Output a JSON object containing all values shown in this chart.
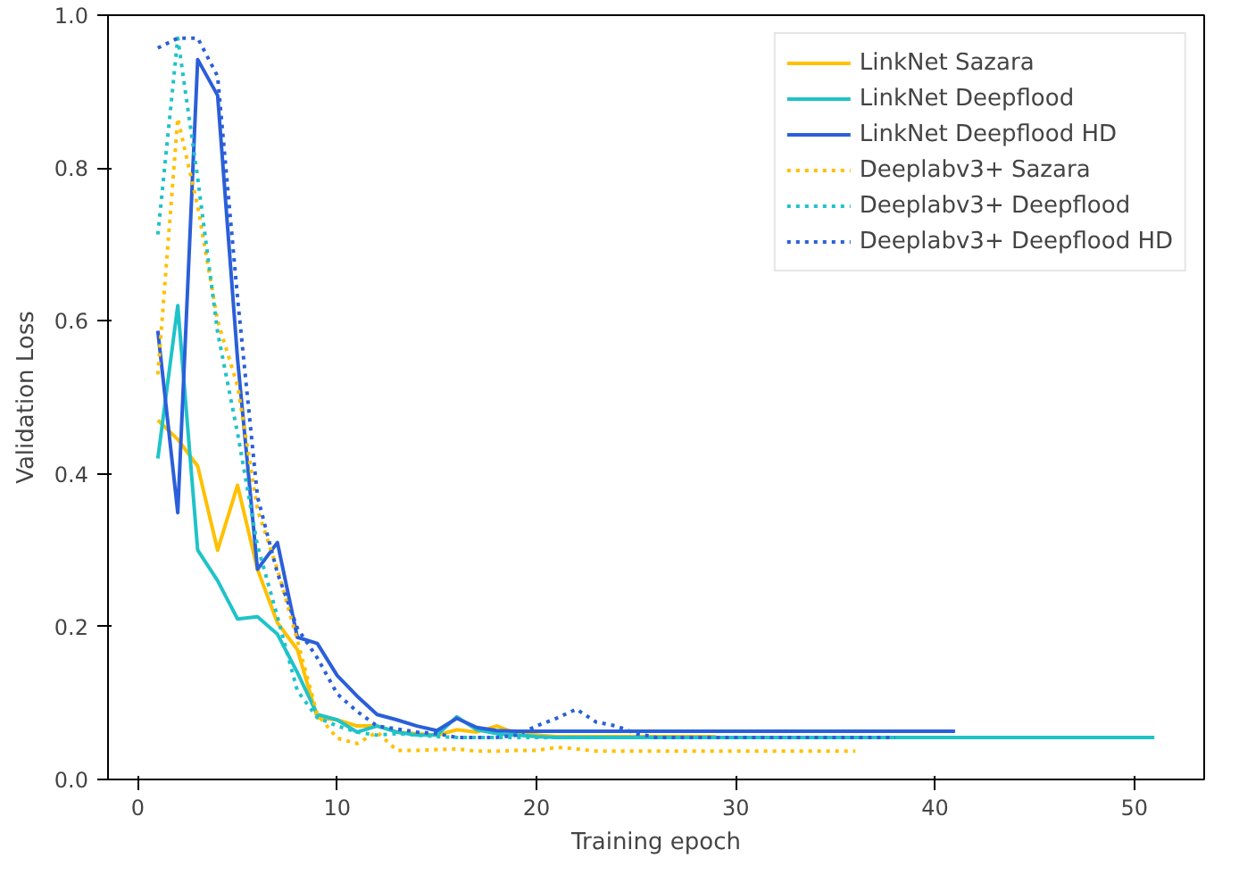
{
  "chart_data": {
    "type": "line",
    "xlabel": "Training epoch",
    "ylabel": "Validation Loss",
    "xlim": [
      -1.5,
      53.5
    ],
    "xticks": [
      0,
      10,
      20,
      30,
      40,
      50
    ],
    "ylim": [
      0,
      1
    ],
    "yticks": [
      {
        "value": 0,
        "label": "0.0"
      },
      {
        "value": 0.2,
        "label": "0.2"
      },
      {
        "value": 0.4,
        "label": "0.4"
      },
      {
        "value": 0.6,
        "label": "0.6"
      },
      {
        "value": 0.8,
        "label": "0.8"
      },
      {
        "value": 1,
        "label": "1.0"
      }
    ],
    "grid": false,
    "legend": "top right",
    "series": [
      {
        "name": "LinkNet Sazara",
        "color": "#ffc000",
        "line_style": "solid",
        "x": [
          1,
          2,
          3,
          4,
          5,
          6,
          7,
          8,
          9,
          10,
          11,
          12,
          13,
          14,
          15,
          16,
          17,
          18,
          19,
          20,
          21,
          22,
          23,
          24,
          25,
          26,
          27,
          28,
          29
        ],
        "values": [
          0.47,
          0.445,
          0.41,
          0.3,
          0.385,
          0.275,
          0.205,
          0.17,
          0.081,
          0.078,
          0.07,
          0.07,
          0.062,
          0.06,
          0.058,
          0.065,
          0.062,
          0.07,
          0.06,
          0.058,
          0.056,
          0.056,
          0.056,
          0.056,
          0.056,
          0.056,
          0.056,
          0.056,
          0.056
        ]
      },
      {
        "name": "LinkNet Deepflood",
        "color": "#1fc3c8",
        "line_style": "solid",
        "x": [
          1,
          2,
          3,
          4,
          5,
          6,
          7,
          8,
          9,
          10,
          11,
          12,
          13,
          14,
          15,
          16,
          17,
          18,
          19,
          20,
          21,
          22,
          23,
          24,
          25,
          26,
          27,
          28,
          29,
          30,
          31,
          32,
          33,
          34,
          35,
          36,
          37,
          38,
          39,
          40,
          41,
          42,
          43,
          44,
          45,
          46,
          47,
          48,
          49,
          50,
          51
        ],
        "values": [
          0.42,
          0.62,
          0.3,
          0.26,
          0.21,
          0.213,
          0.19,
          0.14,
          0.085,
          0.078,
          0.062,
          0.07,
          0.062,
          0.058,
          0.058,
          0.082,
          0.065,
          0.06,
          0.058,
          0.056,
          0.055,
          0.055,
          0.055,
          0.055,
          0.055,
          0.055,
          0.055,
          0.055,
          0.055,
          0.055,
          0.055,
          0.055,
          0.055,
          0.055,
          0.055,
          0.055,
          0.055,
          0.055,
          0.055,
          0.055,
          0.055,
          0.055,
          0.055,
          0.055,
          0.055,
          0.055,
          0.055,
          0.055,
          0.055,
          0.055,
          0.055
        ]
      },
      {
        "name": "LinkNet Deepflood HD",
        "color": "#2b5fd9",
        "line_style": "solid",
        "x": [
          1,
          2,
          3,
          4,
          5,
          6,
          7,
          8,
          9,
          10,
          11,
          12,
          13,
          14,
          15,
          16,
          17,
          18,
          19,
          20,
          21,
          22,
          23,
          24,
          25,
          26,
          27,
          28,
          29,
          30,
          31,
          32,
          33,
          34,
          35,
          36,
          37,
          38,
          39,
          40,
          41
        ],
        "values": [
          0.587,
          0.349,
          0.942,
          0.895,
          0.55,
          0.275,
          0.31,
          0.186,
          0.178,
          0.136,
          0.109,
          0.085,
          0.078,
          0.07,
          0.064,
          0.08,
          0.068,
          0.064,
          0.063,
          0.063,
          0.063,
          0.063,
          0.063,
          0.063,
          0.063,
          0.063,
          0.063,
          0.063,
          0.063,
          0.063,
          0.063,
          0.063,
          0.063,
          0.063,
          0.063,
          0.063,
          0.063,
          0.063,
          0.063,
          0.063,
          0.063
        ]
      },
      {
        "name": "Deeplabv3+ Sazara",
        "color": "#ffc000",
        "line_style": "dotted",
        "x": [
          1,
          2,
          3,
          4,
          5,
          6,
          7,
          8,
          9,
          10,
          11,
          12,
          13,
          14,
          15,
          16,
          17,
          18,
          19,
          20,
          21,
          22,
          23,
          24,
          25,
          26,
          27,
          28,
          29,
          30,
          31,
          32,
          33,
          34,
          35,
          36
        ],
        "values": [
          0.53,
          0.865,
          0.75,
          0.6,
          0.515,
          0.353,
          0.275,
          0.182,
          0.085,
          0.054,
          0.047,
          0.062,
          0.038,
          0.038,
          0.039,
          0.04,
          0.037,
          0.037,
          0.038,
          0.038,
          0.042,
          0.04,
          0.037,
          0.037,
          0.037,
          0.037,
          0.037,
          0.037,
          0.037,
          0.037,
          0.037,
          0.037,
          0.037,
          0.037,
          0.037,
          0.037
        ]
      },
      {
        "name": "Deeplabv3+ Deepflood",
        "color": "#1fc3c8",
        "line_style": "dotted",
        "x": [
          1,
          2,
          3,
          4,
          5,
          6,
          7,
          8,
          9,
          10,
          11,
          12,
          13,
          14,
          15,
          16,
          17,
          18,
          19,
          20,
          21,
          22,
          23,
          24,
          25,
          26,
          27,
          28,
          29,
          30,
          31,
          32,
          33,
          34,
          35,
          36,
          37,
          38,
          39,
          40,
          41,
          42,
          43
        ],
        "values": [
          0.713,
          0.97,
          0.787,
          0.585,
          0.453,
          0.306,
          0.213,
          0.116,
          0.081,
          0.07,
          0.062,
          0.058,
          0.06,
          0.058,
          0.056,
          0.055,
          0.055,
          0.055,
          0.055,
          0.055,
          0.055,
          0.055,
          0.055,
          0.055,
          0.055,
          0.055,
          0.055,
          0.055,
          0.055,
          0.055,
          0.055,
          0.055,
          0.055,
          0.055,
          0.055,
          0.055,
          0.055,
          0.055,
          0.055,
          0.055,
          0.055,
          0.055,
          0.055
        ]
      },
      {
        "name": "Deeplabv3+ Deepflood HD",
        "color": "#2b5fd9",
        "line_style": "dotted",
        "x": [
          1,
          2,
          3,
          4,
          5,
          6,
          7,
          8,
          9,
          10,
          11,
          12,
          13,
          14,
          15,
          16,
          17,
          18,
          19,
          20,
          21,
          22,
          23,
          24,
          25,
          26,
          27,
          28,
          29,
          30,
          31,
          32,
          33,
          34,
          35,
          36,
          37,
          38
        ],
        "values": [
          0.957,
          0.97,
          0.97,
          0.92,
          0.63,
          0.37,
          0.27,
          0.198,
          0.159,
          0.112,
          0.089,
          0.07,
          0.066,
          0.062,
          0.06,
          0.055,
          0.055,
          0.055,
          0.058,
          0.07,
          0.08,
          0.092,
          0.075,
          0.07,
          0.06,
          0.055,
          0.055,
          0.055,
          0.055,
          0.055,
          0.055,
          0.055,
          0.055,
          0.055,
          0.055,
          0.055,
          0.055,
          0.055
        ]
      }
    ]
  }
}
